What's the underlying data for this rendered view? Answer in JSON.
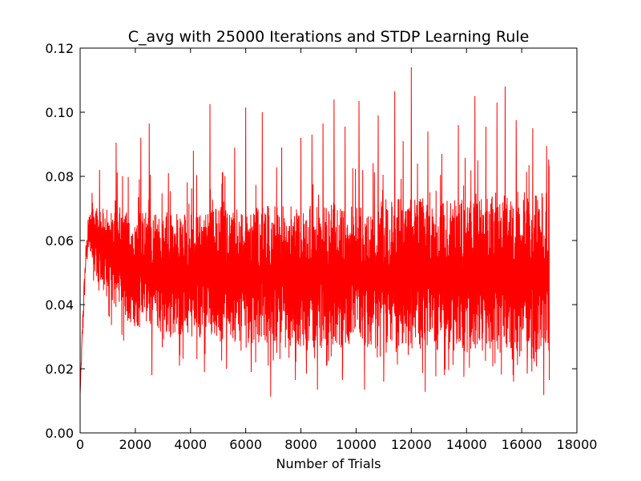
{
  "chart_data": {
    "type": "line",
    "title": "C_avg with 25000 Iterations and STDP Learning Rule",
    "xlabel": "Number of Trials",
    "ylabel": "",
    "xlim": [
      0,
      18000
    ],
    "ylim": [
      0,
      0.12
    ],
    "x_ticks": [
      "0",
      "2000",
      "4000",
      "6000",
      "8000",
      "10000",
      "12000",
      "14000",
      "16000",
      "18000"
    ],
    "y_ticks": [
      "0.00",
      "0.02",
      "0.04",
      "0.06",
      "0.08",
      "0.10",
      "0.12"
    ],
    "grid": false,
    "legend": "none",
    "series": [
      {
        "color": "#ff0000",
        "x_range": [
          0,
          17000
        ],
        "rise_end_x": 400,
        "envelope": {
          "x": [
            0,
            100,
            200,
            300,
            400,
            600,
            800,
            1000,
            1500,
            2000,
            3000,
            4000,
            5000,
            6000,
            7000,
            8000,
            9000,
            10000,
            11000,
            12000,
            13000,
            14000,
            15000,
            16000,
            17000
          ],
          "band_high": [
            0.012,
            0.04,
            0.058,
            0.068,
            0.072,
            0.071,
            0.07,
            0.07,
            0.069,
            0.069,
            0.069,
            0.069,
            0.07,
            0.07,
            0.071,
            0.071,
            0.072,
            0.072,
            0.073,
            0.073,
            0.073,
            0.074,
            0.074,
            0.075,
            0.075
          ],
          "band_low": [
            0.012,
            0.03,
            0.05,
            0.055,
            0.055,
            0.048,
            0.044,
            0.04,
            0.036,
            0.033,
            0.031,
            0.03,
            0.029,
            0.028,
            0.028,
            0.027,
            0.027,
            0.026,
            0.026,
            0.026,
            0.025,
            0.025,
            0.025,
            0.025,
            0.024
          ]
        },
        "peaks": [
          [
            700,
            0.082
          ],
          [
            1300,
            0.0905
          ],
          [
            2200,
            0.092
          ],
          [
            2500,
            0.0965
          ],
          [
            3200,
            0.081
          ],
          [
            4100,
            0.088
          ],
          [
            4700,
            0.1025
          ],
          [
            5600,
            0.089
          ],
          [
            6000,
            0.1015
          ],
          [
            6600,
            0.1
          ],
          [
            7300,
            0.089
          ],
          [
            8000,
            0.092
          ],
          [
            8400,
            0.093
          ],
          [
            8800,
            0.0965
          ],
          [
            9200,
            0.104
          ],
          [
            9600,
            0.0955
          ],
          [
            10100,
            0.1035
          ],
          [
            10800,
            0.099
          ],
          [
            11400,
            0.1065
          ],
          [
            11700,
            0.091
          ],
          [
            12000,
            0.114
          ],
          [
            12600,
            0.094
          ],
          [
            13100,
            0.087
          ],
          [
            13700,
            0.096
          ],
          [
            14300,
            0.105
          ],
          [
            14700,
            0.0955
          ],
          [
            15100,
            0.103
          ],
          [
            15400,
            0.108
          ],
          [
            15800,
            0.0975
          ],
          [
            16400,
            0.095
          ],
          [
            16900,
            0.0895
          ]
        ],
        "troughs": [
          [
            2600,
            0.018
          ],
          [
            3600,
            0.021
          ],
          [
            4500,
            0.019
          ],
          [
            5300,
            0.02
          ],
          [
            6200,
            0.019
          ],
          [
            6900,
            0.0113
          ],
          [
            7800,
            0.0165
          ],
          [
            8200,
            0.0185
          ],
          [
            8600,
            0.0135
          ],
          [
            9000,
            0.0225
          ],
          [
            9500,
            0.0165
          ],
          [
            10300,
            0.0135
          ],
          [
            11000,
            0.016
          ],
          [
            11700,
            0.0165
          ],
          [
            12500,
            0.0128
          ],
          [
            13200,
            0.018
          ],
          [
            13900,
            0.0175
          ],
          [
            14300,
            0.016
          ],
          [
            15100,
            0.0155
          ],
          [
            15700,
            0.016
          ],
          [
            16200,
            0.0185
          ],
          [
            16800,
            0.0118
          ],
          [
            17000,
            0.0165
          ]
        ]
      }
    ]
  }
}
